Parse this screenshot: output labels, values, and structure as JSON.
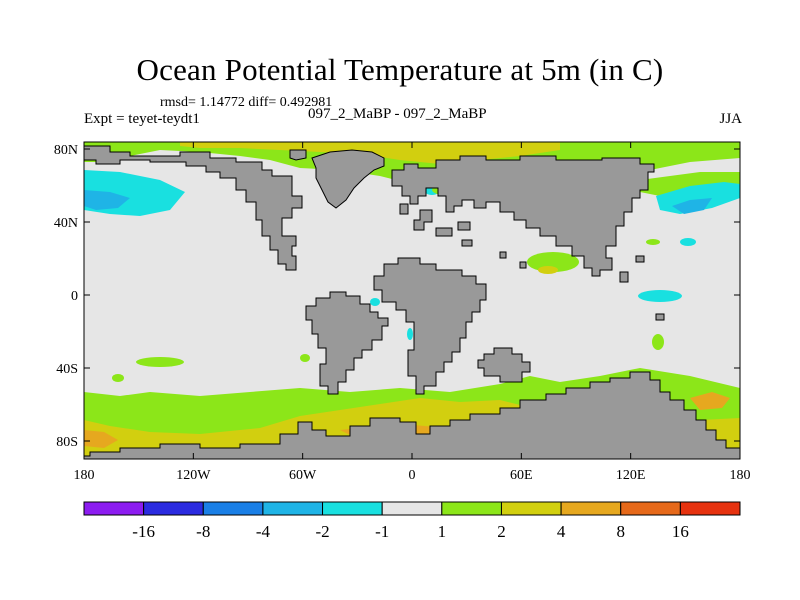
{
  "title": "Ocean Potential Temperature at 5m (in C)",
  "stats_line": "rmsd= 1.14772  diff= 0.492981",
  "experiment": "Expt = teyet-teydt1",
  "case_label": "097_2_MaBP - 097_2_MaBP",
  "season": "JJA",
  "map": {
    "x_ticks": [
      "180",
      "120W",
      "60W",
      "0",
      "60E",
      "120E",
      "180"
    ],
    "y_ticks": [
      "80N",
      "40N",
      "0",
      "40S",
      "80S"
    ],
    "land_color": "#999999",
    "ocean_near_zero_color": "#e6e6e6"
  },
  "colorbar": {
    "labels": [
      "-16",
      "-8",
      "-4",
      "-2",
      "-1",
      "1",
      "2",
      "4",
      "8",
      "16"
    ],
    "colors": [
      "#8c1cf0",
      "#2b2be0",
      "#1a7fe6",
      "#1fb4e6",
      "#19e0e0",
      "#e6e6e6",
      "#8ce619",
      "#d2cf0f",
      "#e6a81f",
      "#e6691a",
      "#e6320f"
    ]
  }
}
